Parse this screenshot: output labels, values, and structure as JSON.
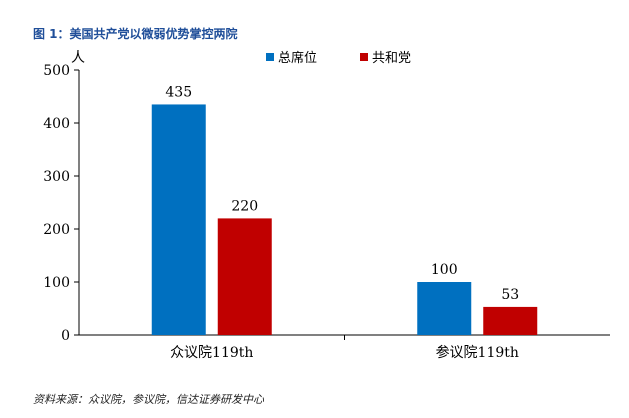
{
  "figure": {
    "title": "图 1：美国共产党以微弱优势掌控两院",
    "source": "资料来源：众议院，参议院，信达证券研发中心"
  },
  "chart_data": {
    "type": "bar",
    "title": "",
    "ylabel": "人",
    "xlabel": "",
    "categories": [
      "众议院119th",
      "参议院119th"
    ],
    "series": [
      {
        "name": "总席位",
        "values": [
          435,
          100
        ],
        "color": "#0070c0"
      },
      {
        "name": "共和党",
        "values": [
          220,
          53
        ],
        "color": "#c00000"
      }
    ],
    "ylim": [
      0,
      500
    ],
    "yticks": [
      0,
      100,
      200,
      300,
      400,
      500
    ],
    "grid": false,
    "legend": "top-center",
    "data_labels": true
  }
}
